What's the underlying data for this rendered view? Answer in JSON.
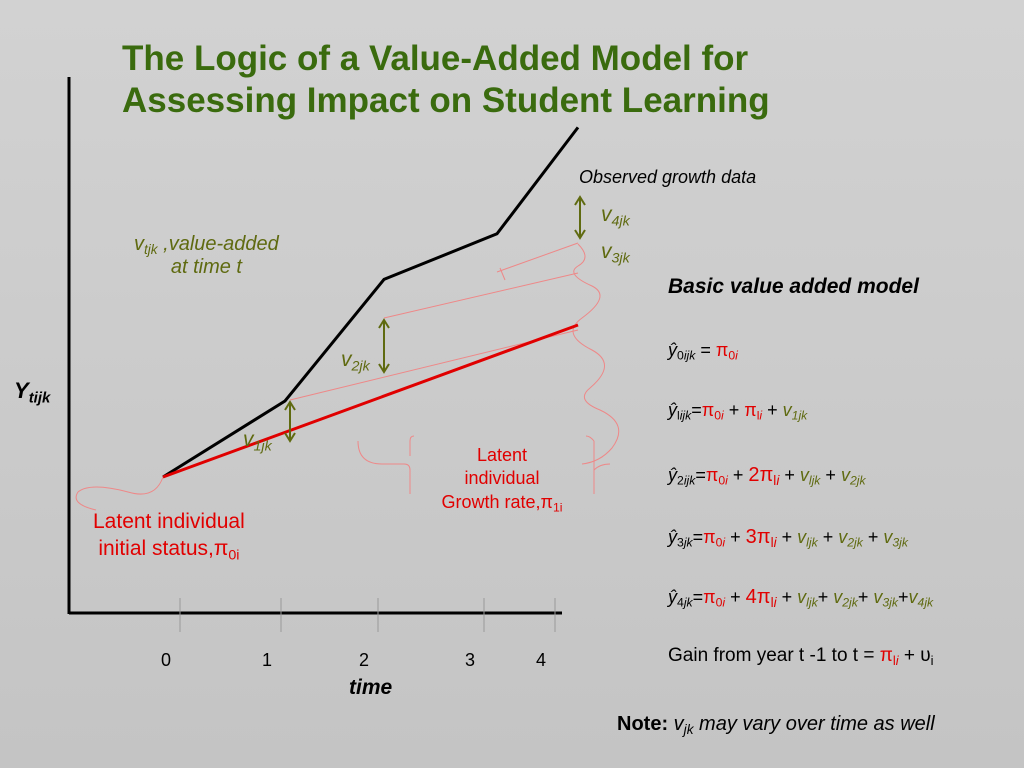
{
  "title_line1": "The Logic of a Value-Added Model for",
  "title_line2": "Assessing Impact on Student Learning",
  "y_axis_label": "Y",
  "y_axis_sub": "tijk",
  "x_axis_label": "time",
  "x_ticks": [
    "0",
    "1",
    "2",
    "3",
    "4"
  ],
  "observed_label": "Observed growth data",
  "value_added_v": "v",
  "value_added_sub": "tjk",
  "value_added_text1": " ,value-added",
  "value_added_text2": "at time t",
  "v_labels": [
    {
      "v": "v",
      "sub": "1jk"
    },
    {
      "v": "v",
      "sub": "2jk"
    },
    {
      "v": "v",
      "sub": "3jk"
    },
    {
      "v": "v",
      "sub": "4jk"
    }
  ],
  "initial_status_line1": "Latent individual",
  "initial_status_line2": "initial status,π",
  "initial_status_sub": "0i",
  "growth_line1": "Latent",
  "growth_line2": "individual",
  "growth_line3": "Growth rate,π",
  "growth_sub": "1i",
  "model_heading": "Basic value added model",
  "gain_text": "Gain from year t -1 to t = ",
  "gain_pi": "π",
  "gain_pi_sub": "l",
  "gain_pi_sub_i": "i",
  "gain_plus": " + ",
  "gain_u": "υ",
  "gain_u_sub": "i",
  "note_label": "Note:",
  "note_v": " v",
  "note_sub": "jk",
  "note_text": " may vary over time as well",
  "colors": {
    "title": "#3a6b0e",
    "olive": "#5f6a10",
    "red": "#e10000",
    "bracket": "#ee8888"
  },
  "chart_data": {
    "type": "line",
    "x": [
      0,
      1,
      2,
      3,
      4
    ],
    "series": [
      {
        "values": [
          0,
          1,
          2.6,
          3.2,
          4.6
        ]
      },
      {
        "values": [
          0,
          0.5,
          1.0,
          1.5,
          2.0
        ]
      }
    ]
  }
}
